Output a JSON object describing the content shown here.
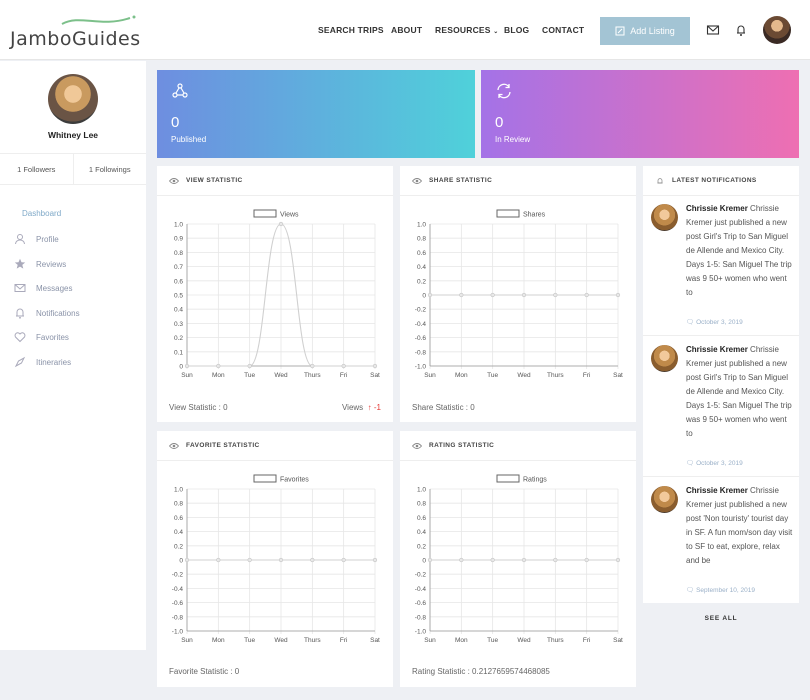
{
  "header": {
    "logo_text": "JamboGuides",
    "nav": [
      "SEARCH TRIPS",
      "ABOUT",
      "RESOURCES",
      "BLOG",
      "CONTACT"
    ],
    "add_listing": "Add Listing",
    "brand_color": "#a3c4d4"
  },
  "sidebar": {
    "name": "Whitney Lee",
    "followers": "1 Followers",
    "followings": "1 Followings",
    "menu": [
      {
        "label": "Dashboard",
        "icon": "none"
      },
      {
        "label": "Profile",
        "icon": "user-icon"
      },
      {
        "label": "Reviews",
        "icon": "star-icon"
      },
      {
        "label": "Messages",
        "icon": "envelope-icon"
      },
      {
        "label": "Notifications",
        "icon": "bell-icon"
      },
      {
        "label": "Favorites",
        "icon": "heart-icon"
      },
      {
        "label": "Itineraries",
        "icon": "compass-icon"
      }
    ]
  },
  "stats": {
    "published": {
      "value": "0",
      "label": "Published"
    },
    "review": {
      "value": "0",
      "label": "In Review"
    }
  },
  "panels": {
    "view": {
      "title": "VIEW STATISTIC",
      "legend": "Views",
      "footer": "View Statistic : 0",
      "right_label": "Views",
      "right_value": "-1"
    },
    "share": {
      "title": "SHARE STATISTIC",
      "legend": "Shares",
      "footer": "Share Statistic : 0"
    },
    "favorite": {
      "title": "FAVORITE STATISTIC",
      "legend": "Favorites",
      "footer": "Favorite Statistic : 0"
    },
    "rating": {
      "title": "RATING STATISTIC",
      "legend": "Ratings",
      "footer": "Rating Statistic : 0.2127659574468085"
    }
  },
  "chart_data": [
    {
      "type": "line",
      "title": "",
      "series": [
        {
          "name": "Views",
          "values": [
            0,
            0,
            0,
            1,
            0,
            0,
            0
          ]
        }
      ],
      "categories": [
        "Sun",
        "Mon",
        "Tue",
        "Wed",
        "Thurs",
        "Fri",
        "Sat"
      ],
      "ylim": [
        0,
        1
      ],
      "yticks": [
        "0",
        "0.1",
        "0.2",
        "0.3",
        "0.4",
        "0.5",
        "0.6",
        "0.7",
        "0.8",
        "0.9",
        "1.0"
      ],
      "grid": true,
      "legend": "top-center"
    },
    {
      "type": "line",
      "title": "",
      "series": [
        {
          "name": "Shares",
          "values": [
            0,
            0,
            0,
            0,
            0,
            0,
            0
          ]
        }
      ],
      "categories": [
        "Sun",
        "Mon",
        "Tue",
        "Wed",
        "Thurs",
        "Fri",
        "Sat"
      ],
      "ylim": [
        -1,
        1
      ],
      "yticks": [
        "-1.0",
        "-0.8",
        "-0.6",
        "-0.4",
        "-0.2",
        "0",
        "0.2",
        "0.4",
        "0.6",
        "0.8",
        "1.0"
      ],
      "grid": true,
      "legend": "top-center"
    },
    {
      "type": "line",
      "title": "",
      "series": [
        {
          "name": "Favorites",
          "values": [
            0,
            0,
            0,
            0,
            0,
            0,
            0
          ]
        }
      ],
      "categories": [
        "Sun",
        "Mon",
        "Tue",
        "Wed",
        "Thurs",
        "Fri",
        "Sat"
      ],
      "ylim": [
        -1,
        1
      ],
      "yticks": [
        "-1.0",
        "-0.8",
        "-0.6",
        "-0.4",
        "-0.2",
        "0",
        "0.2",
        "0.4",
        "0.6",
        "0.8",
        "1.0"
      ],
      "grid": true,
      "legend": "top-center"
    },
    {
      "type": "line",
      "title": "",
      "series": [
        {
          "name": "Ratings",
          "values": [
            0,
            0,
            0,
            0,
            0,
            0,
            0
          ]
        }
      ],
      "categories": [
        "Sun",
        "Mon",
        "Tue",
        "Wed",
        "Thurs",
        "Fri",
        "Sat"
      ],
      "ylim": [
        -1,
        1
      ],
      "yticks": [
        "-1.0",
        "-0.8",
        "-0.6",
        "-0.4",
        "-0.2",
        "0",
        "0.2",
        "0.4",
        "0.6",
        "0.8",
        "1.0"
      ],
      "grid": true,
      "legend": "top-center"
    }
  ],
  "notifications": {
    "title": "LATEST NOTIFICATIONS",
    "items": [
      {
        "name": "Chrissie Kremer",
        "text": "Chrissie Kremer just published a new post Girl's Trip to San Miguel de Allende and Mexico City. Days 1-5: San Miguel The trip was 9 50+ women who went to",
        "date": "October 3, 2019"
      },
      {
        "name": "Chrissie Kremer",
        "text": "Chrissie Kremer just published a new post Girl's Trip to San Miguel de Allende and Mexico City. Days 1-5: San Miguel The trip was 9 50+ women who went to",
        "date": "October 3, 2019"
      },
      {
        "name": "Chrissie Kremer",
        "text": "Chrissie Kremer just published a new post 'Non touristy' tourist day in SF. A fun mom/son day visit to SF to eat, explore, relax and be",
        "date": "September 10, 2019"
      }
    ],
    "see_all": "SEE ALL"
  }
}
